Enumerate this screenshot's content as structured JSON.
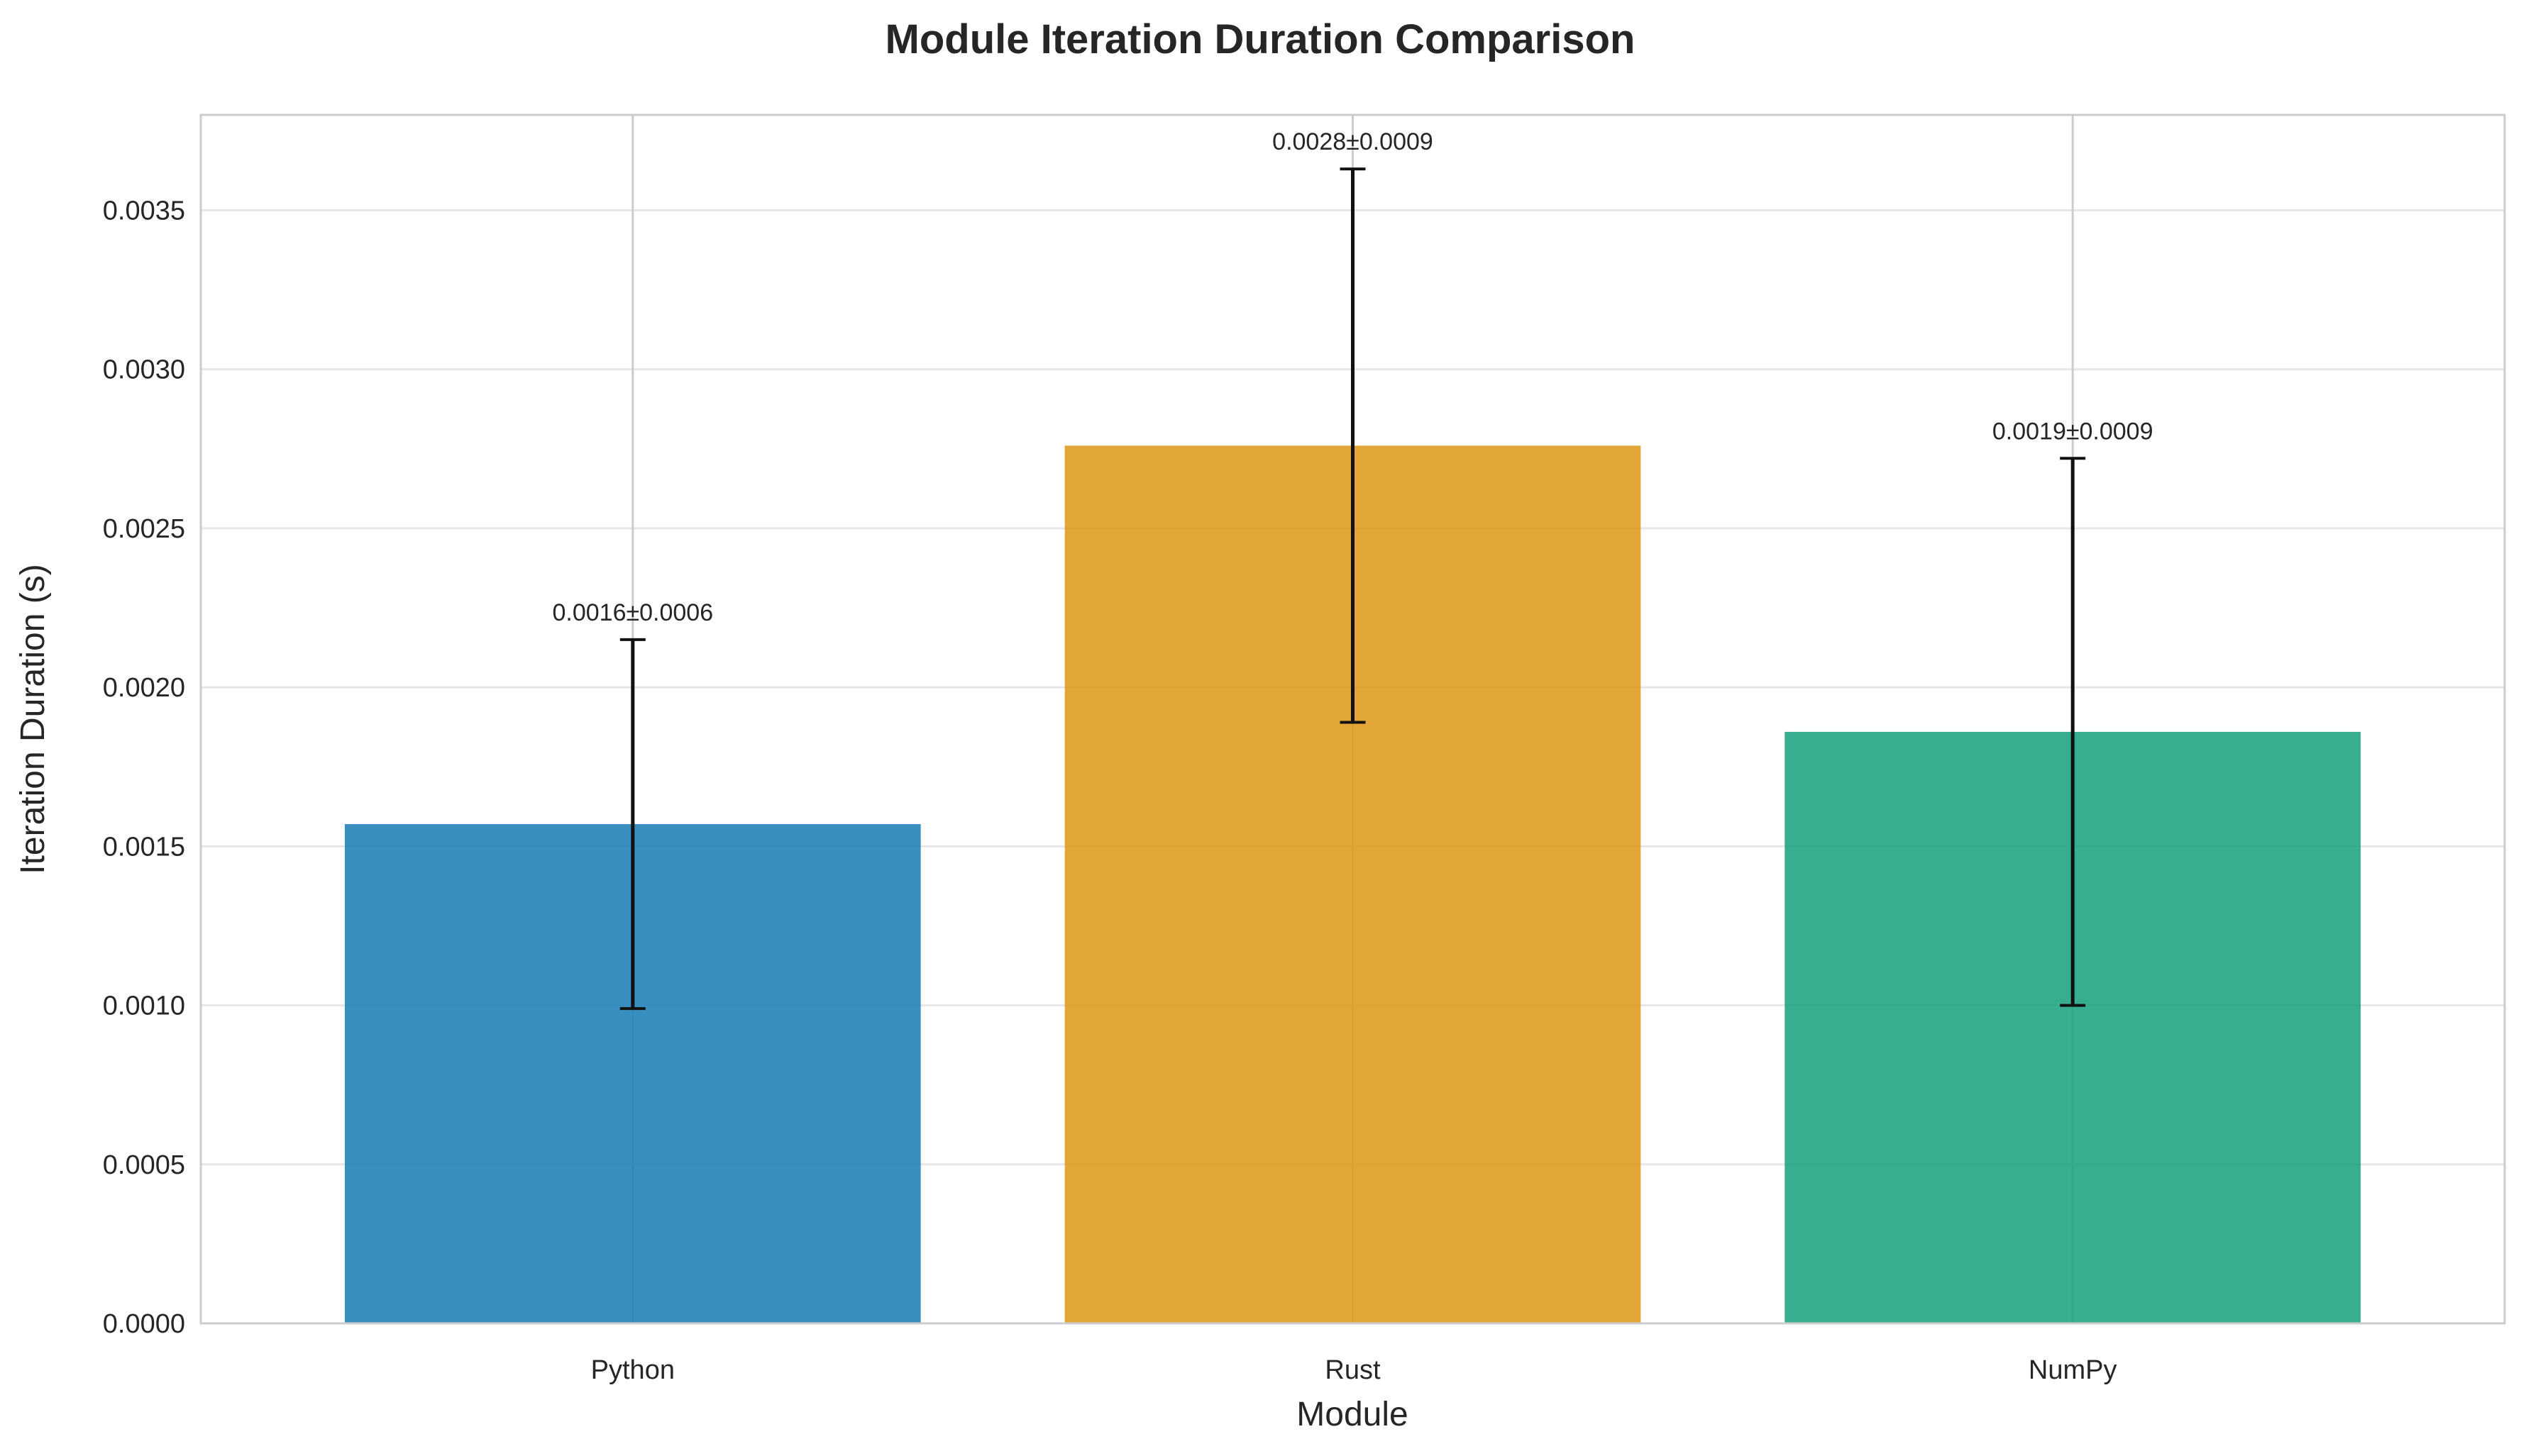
{
  "chart_data": {
    "type": "bar",
    "title": "Module Iteration Duration Comparison",
    "xlabel": "Module",
    "ylabel": "Iteration Duration (s)",
    "categories": [
      "Python",
      "Rust",
      "NumPy"
    ],
    "values": [
      0.00157,
      0.00276,
      0.00186
    ],
    "errors": [
      0.00058,
      0.00087,
      0.00086
    ],
    "data_labels": [
      "0.0016±0.0006",
      "0.0028±0.0009",
      "0.0019±0.0009"
    ],
    "colors": [
      "#1f7fb8",
      "#de9a1c",
      "#1aa380"
    ],
    "ylim": [
      0,
      0.0038
    ],
    "yticks": [
      0,
      0.0005,
      0.001,
      0.0015,
      0.002,
      0.0025,
      0.003,
      0.0035
    ],
    "ytick_labels": [
      "0.0000",
      "0.0005",
      "0.0010",
      "0.0015",
      "0.0020",
      "0.0025",
      "0.0030",
      "0.0035"
    ],
    "grid": true
  }
}
